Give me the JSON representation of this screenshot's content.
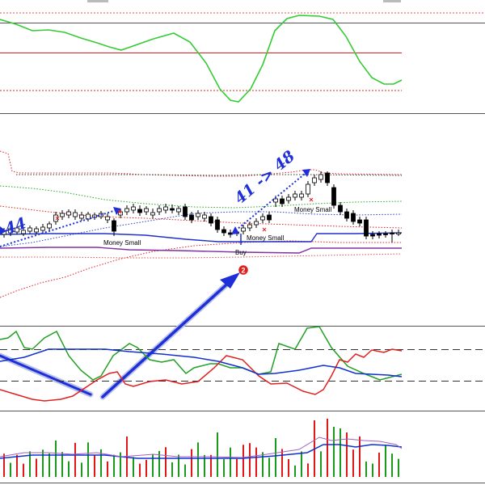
{
  "annotations": {
    "move_label": "41 -> 48",
    "partial_label": "44",
    "marker_number": "2"
  },
  "signals": {
    "money_small_left": "Money Small",
    "money_small_center": "Money Small",
    "money_small_right": "Money Small",
    "buy_label": "Buy"
  },
  "colors": {
    "bullish_volume": "#1a9a1a",
    "bearish_volume": "#e01818",
    "annotation_blue": "#1f2fd8",
    "oscillator_green": "#33cc33",
    "signal_red": "#e02020",
    "stochastic_blue": "#1030d0"
  },
  "icons": {
    "marker": "numbered-circle-icon",
    "arrow": "pointer-arrow-icon"
  }
}
